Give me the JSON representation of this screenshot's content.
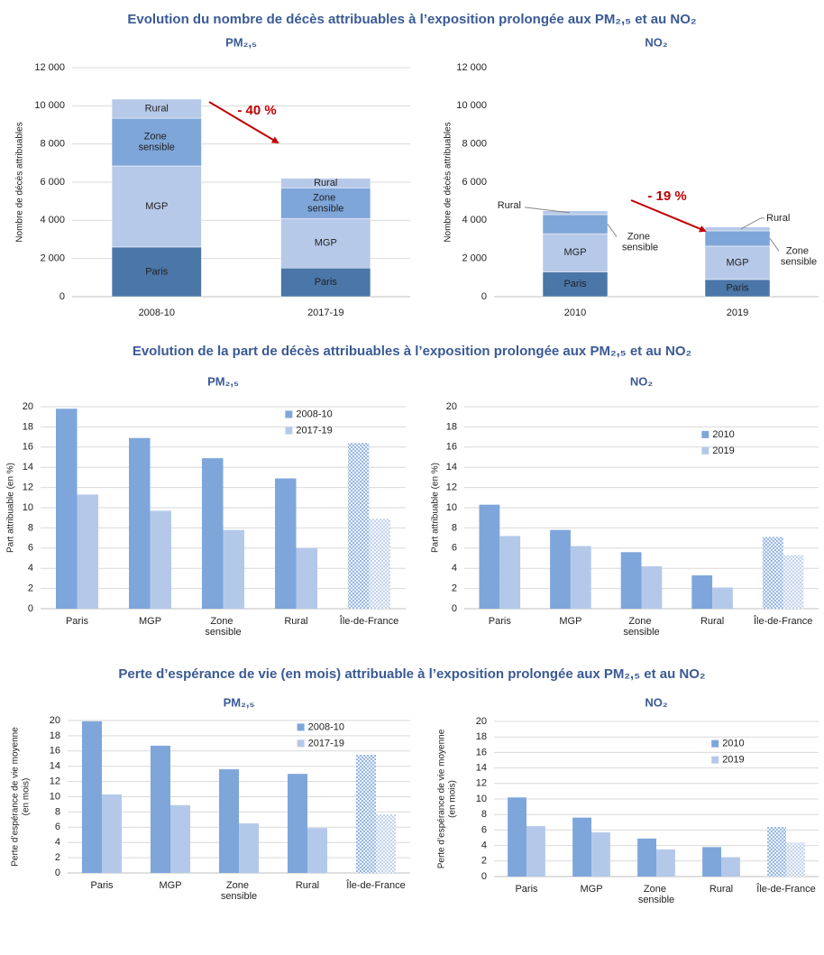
{
  "headings": [
    "Evolution du nombre de décès attribuables à l’exposition prolongée aux PM₂,₅ et au NO₂",
    "Evolution de la part de décès attribuables à l’exposition prolongée aux PM₂,₅ et au NO₂",
    "Perte d’espérance de vie (en mois) attribuable à l’exposition prolongée aux PM₂,₅ et au NO₂"
  ],
  "chart_data": [
    {
      "type": "stacked_bar",
      "title": "PM₂,₅",
      "ylabel": "Nombre de décès attribuables",
      "categories": [
        "2008-10",
        "2017-19"
      ],
      "series": [
        {
          "name": "Paris",
          "color": "#4a76a8",
          "values": [
            2600,
            1500
          ]
        },
        {
          "name": "MGP",
          "color": "#b7c9e9",
          "values": [
            4250,
            2600
          ]
        },
        {
          "name": "Zone sensible",
          "color": "#7ea6d9",
          "values": [
            2500,
            1600
          ]
        },
        {
          "name": "Rural",
          "color": "#b7c9e9",
          "values": [
            1000,
            500
          ]
        }
      ],
      "ylim": [
        0,
        12000
      ],
      "yticks": [
        0,
        {
          "value": 2000,
          "label": "2 000"
        },
        {
          "value": 4000,
          "label": "4 000"
        },
        {
          "value": 6000,
          "label": "6 000"
        },
        {
          "value": 8000,
          "label": "8 000"
        },
        {
          "value": 10000,
          "label": "10 000"
        },
        {
          "value": 12000,
          "label": "12 000"
        }
      ],
      "grid": true,
      "annotation": "- 40 %",
      "annotation_color": "#c00000"
    },
    {
      "type": "stacked_bar",
      "title": "NO₂",
      "ylabel": "Nombre de décès attribuables",
      "categories": [
        "2010",
        "2019"
      ],
      "series": [
        {
          "name": "Paris",
          "color": "#4a76a8",
          "values": [
            1300,
            900
          ]
        },
        {
          "name": "MGP",
          "color": "#b7c9e9",
          "values": [
            2000,
            1750
          ]
        },
        {
          "name": "Zone sensible",
          "color": "#7ea6d9",
          "values": [
            1000,
            800
          ]
        },
        {
          "name": "Rural",
          "color": "#b7c9e9",
          "values": [
            200,
            200
          ]
        }
      ],
      "ylim": [
        0,
        12000
      ],
      "yticks": [
        0,
        {
          "value": 2000,
          "label": "2 000"
        },
        {
          "value": 4000,
          "label": "4 000"
        },
        {
          "value": 6000,
          "label": "6 000"
        },
        {
          "value": 8000,
          "label": "8 000"
        },
        {
          "value": 10000,
          "label": "10 000"
        },
        {
          "value": 12000,
          "label": "12 000"
        }
      ],
      "grid": false,
      "annotation": "- 19 %",
      "annotation_color": "#c00000"
    },
    {
      "type": "bar",
      "title": "PM₂,₅",
      "ylabel": "Part attribuable (en %)",
      "categories": [
        "Paris",
        "MGP",
        "Zone sensible",
        "Rural",
        "Île-de-France"
      ],
      "series": [
        {
          "name": "2008-10",
          "color": "#7ea6db",
          "values": [
            19.8,
            16.9,
            14.9,
            12.9,
            16.4
          ]
        },
        {
          "name": "2017-19",
          "color": "#b4c9ea",
          "values": [
            11.3,
            9.7,
            7.8,
            6.0,
            8.9
          ]
        }
      ],
      "ylim": [
        0,
        20
      ],
      "yticks": [
        0,
        2,
        4,
        6,
        8,
        10,
        12,
        14,
        16,
        18,
        20
      ],
      "grid": true,
      "legend": "upper right",
      "hatched_categories": [
        4
      ]
    },
    {
      "type": "bar",
      "title": "NO₂",
      "ylabel": "Part attribuable (en %)",
      "categories": [
        "Paris",
        "MGP",
        "Zone sensible",
        "Rural",
        "Île-de-France"
      ],
      "series": [
        {
          "name": "2010",
          "color": "#7ea6db",
          "values": [
            10.3,
            7.8,
            5.6,
            3.3,
            7.1
          ]
        },
        {
          "name": "2019",
          "color": "#b4c9ea",
          "values": [
            7.2,
            6.2,
            4.2,
            2.1,
            5.3
          ]
        }
      ],
      "ylim": [
        0,
        20
      ],
      "yticks": [
        0,
        2,
        4,
        6,
        8,
        10,
        12,
        14,
        16,
        18,
        20
      ],
      "grid": true,
      "legend": "upper right",
      "hatched_categories": [
        4
      ]
    },
    {
      "type": "bar",
      "title": "PM₂,₅",
      "ylabel": [
        "Perte d’espérance de vie moyenne",
        "(en mois)"
      ],
      "categories": [
        "Paris",
        "MGP",
        "Zone sensible",
        "Rural",
        "Île-de-France"
      ],
      "series": [
        {
          "name": "2008-10",
          "color": "#7ea6db",
          "values": [
            19.9,
            16.7,
            13.6,
            13.0,
            15.5
          ]
        },
        {
          "name": "2017-19",
          "color": "#b4c9ea",
          "values": [
            10.3,
            8.9,
            6.5,
            5.9,
            7.7
          ]
        }
      ],
      "ylim": [
        0,
        20
      ],
      "yticks": [
        0,
        2,
        4,
        6,
        8,
        10,
        12,
        14,
        16,
        18,
        20
      ],
      "grid": true,
      "legend": "upper right",
      "hatched_categories": [
        4
      ]
    },
    {
      "type": "bar",
      "title": "NO₂",
      "ylabel": [
        "Perte d’espérance de vie moyenne",
        "(en mois)"
      ],
      "categories": [
        "Paris",
        "MGP",
        "Zone sensible",
        "Rural",
        "Île-de-France"
      ],
      "series": [
        {
          "name": "2010",
          "color": "#7ea6db",
          "values": [
            10.2,
            7.6,
            4.9,
            3.8,
            6.4
          ]
        },
        {
          "name": "2019",
          "color": "#b4c9ea",
          "values": [
            6.5,
            5.7,
            3.5,
            2.5,
            4.4
          ]
        }
      ],
      "ylim": [
        0,
        20
      ],
      "yticks": [
        0,
        2,
        4,
        6,
        8,
        10,
        12,
        14,
        16,
        18,
        20
      ],
      "grid": true,
      "legend": "upper right",
      "hatched_categories": [
        4
      ]
    }
  ]
}
